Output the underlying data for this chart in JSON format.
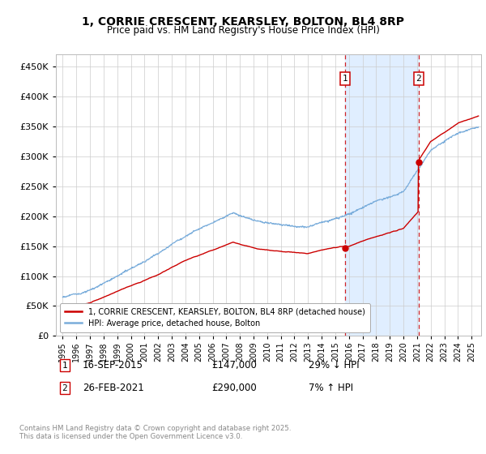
{
  "title": "1, CORRIE CRESCENT, KEARSLEY, BOLTON, BL4 8RP",
  "subtitle": "Price paid vs. HM Land Registry's House Price Index (HPI)",
  "ylim": [
    0,
    470000
  ],
  "xlim_start": 1994.5,
  "xlim_end": 2025.7,
  "sale1_date": 2015.71,
  "sale1_price": 147000,
  "sale1_date_str": "16-SEP-2015",
  "sale1_pct": "29% ↓ HPI",
  "sale2_date": 2021.12,
  "sale2_price": 290000,
  "sale2_date_str": "26-FEB-2021",
  "sale2_pct": "7% ↑ HPI",
  "red_line_color": "#cc0000",
  "blue_line_color": "#7aaddb",
  "shade_color": "#e0eeff",
  "grid_color": "#cccccc",
  "background_color": "#ffffff",
  "legend_label_red": "1, CORRIE CRESCENT, KEARSLEY, BOLTON, BL4 8RP (detached house)",
  "legend_label_blue": "HPI: Average price, detached house, Bolton",
  "footnote": "Contains HM Land Registry data © Crown copyright and database right 2025.\nThis data is licensed under the Open Government Licence v3.0."
}
